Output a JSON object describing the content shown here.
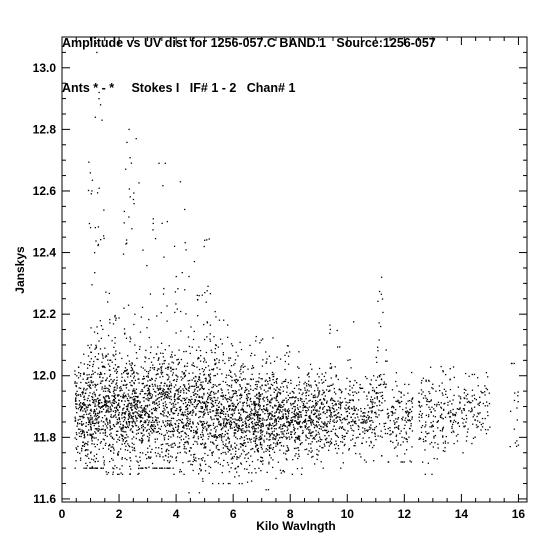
{
  "header": {
    "line1": "Amplitude vs UV dist for 1256-057.C BAND.1   Source:1256-057",
    "line2": "Ants * - *     Stokes I   IF# 1 - 2   Chan# 1"
  },
  "chart_data": {
    "type": "scatter",
    "title": "Amplitude vs UV dist for 1256-057.C BAND.1   Source:1256-057",
    "subtitle": "Ants * - *     Stokes I   IF# 1 - 2   Chan# 1",
    "xlabel": "Kilo Wavlngth",
    "ylabel": "Janskys",
    "xlim": [
      0,
      16.3
    ],
    "ylim": [
      11.59,
      13.1
    ],
    "xticks": [
      0,
      2,
      4,
      6,
      8,
      10,
      12,
      14,
      16
    ],
    "xtick_labels": [
      "0",
      "2",
      "4",
      "6",
      "8",
      "10",
      "12",
      "14",
      "16"
    ],
    "yticks": [
      11.6,
      11.8,
      12.0,
      12.2,
      12.4,
      12.6,
      12.8,
      13.0
    ],
    "ytick_labels": [
      "11.6",
      "11.8",
      "12.0",
      "12.2",
      "12.4",
      "12.6",
      "12.8",
      "13.0"
    ],
    "grid": false,
    "marker_color": "#000000",
    "series": [
      {
        "clusters": [
          {
            "x": [
              0.45,
              0.9
            ],
            "y_center": 11.88,
            "y_spread": 0.09,
            "y_range": [
              11.7,
              12.07
            ],
            "density": 0.75
          },
          {
            "x": [
              0.9,
              1.5
            ],
            "y_center": 11.9,
            "y_spread": 0.11,
            "y_range": [
              11.7,
              12.93
            ],
            "density": 1.0
          },
          {
            "x": [
              1.5,
              2.05
            ],
            "y_center": 11.88,
            "y_spread": 0.1,
            "y_range": [
              11.68,
              12.3
            ],
            "density": 0.9
          },
          {
            "x": [
              2.05,
              2.7
            ],
            "y_center": 11.89,
            "y_spread": 0.1,
            "y_range": [
              11.68,
              12.8
            ],
            "density": 0.95
          },
          {
            "x": [
              2.7,
              3.3
            ],
            "y_center": 11.88,
            "y_spread": 0.09,
            "y_range": [
              11.7,
              12.52
            ],
            "density": 0.85
          },
          {
            "x": [
              3.3,
              3.9
            ],
            "y_center": 11.89,
            "y_spread": 0.1,
            "y_range": [
              11.7,
              12.7
            ],
            "density": 0.85
          },
          {
            "x": [
              3.9,
              4.5
            ],
            "y_center": 11.88,
            "y_spread": 0.09,
            "y_range": [
              11.68,
              12.52
            ],
            "density": 0.8
          },
          {
            "x": [
              4.5,
              5.2
            ],
            "y_center": 11.88,
            "y_spread": 0.1,
            "y_range": [
              11.62,
              12.45
            ],
            "density": 0.85
          },
          {
            "x": [
              5.2,
              6.0
            ],
            "y_center": 11.87,
            "y_spread": 0.09,
            "y_range": [
              11.65,
              12.22
            ],
            "density": 0.8
          },
          {
            "x": [
              6.0,
              6.8
            ],
            "y_center": 11.86,
            "y_spread": 0.08,
            "y_range": [
              11.65,
              12.13
            ],
            "density": 0.8
          },
          {
            "x": [
              6.8,
              7.6
            ],
            "y_center": 11.86,
            "y_spread": 0.08,
            "y_range": [
              11.63,
              12.13
            ],
            "density": 0.85
          },
          {
            "x": [
              7.6,
              8.4
            ],
            "y_center": 11.86,
            "y_spread": 0.07,
            "y_range": [
              11.68,
              12.1
            ],
            "density": 0.7
          },
          {
            "x": [
              8.4,
              9.3
            ],
            "y_center": 11.86,
            "y_spread": 0.06,
            "y_range": [
              11.7,
              12.05
            ],
            "density": 0.6
          },
          {
            "x": [
              9.3,
              10.3
            ],
            "y_center": 11.86,
            "y_spread": 0.07,
            "y_range": [
              11.7,
              12.2
            ],
            "density": 0.45
          },
          {
            "x": [
              10.3,
              11.0
            ],
            "y_center": 11.86,
            "y_spread": 0.06,
            "y_range": [
              11.72,
              12.0
            ],
            "density": 0.35
          },
          {
            "x": [
              11.0,
              11.4
            ],
            "y_center": 11.9,
            "y_spread": 0.1,
            "y_range": [
              11.74,
              12.32
            ],
            "density": 0.35
          },
          {
            "x": [
              11.4,
              12.3
            ],
            "y_center": 11.86,
            "y_spread": 0.06,
            "y_range": [
              11.72,
              12.05
            ],
            "density": 0.3
          },
          {
            "x": [
              12.5,
              13.5
            ],
            "y_center": 11.86,
            "y_spread": 0.07,
            "y_range": [
              11.68,
              12.03
            ],
            "density": 0.28
          },
          {
            "x": [
              13.5,
              14.3
            ],
            "y_center": 11.88,
            "y_spread": 0.06,
            "y_range": [
              11.74,
              12.03
            ],
            "density": 0.22
          },
          {
            "x": [
              14.3,
              15.0
            ],
            "y_center": 11.9,
            "y_spread": 0.05,
            "y_range": [
              11.78,
              12.03
            ],
            "density": 0.18
          },
          {
            "x": [
              15.7,
              16.0
            ],
            "y_center": 11.9,
            "y_spread": 0.08,
            "y_range": [
              11.77,
              12.04
            ],
            "density": 0.1
          }
        ],
        "outliers": [
          {
            "x": 1.2,
            "y": 13.08
          },
          {
            "x": 1.22,
            "y": 13.05
          },
          {
            "x": 1.3,
            "y": 12.92
          },
          {
            "x": 1.35,
            "y": 12.88
          },
          {
            "x": 1.4,
            "y": 12.83
          },
          {
            "x": 2.35,
            "y": 12.8
          },
          {
            "x": 2.6,
            "y": 12.77
          },
          {
            "x": 3.4,
            "y": 12.69
          },
          {
            "x": 4.15,
            "y": 12.63
          },
          {
            "x": 4.3,
            "y": 12.54
          },
          {
            "x": 5.0,
            "y": 12.44
          },
          {
            "x": 4.45,
            "y": 11.62
          },
          {
            "x": 11.2,
            "y": 12.32
          },
          {
            "x": 15.85,
            "y": 12.04
          }
        ]
      }
    ]
  }
}
